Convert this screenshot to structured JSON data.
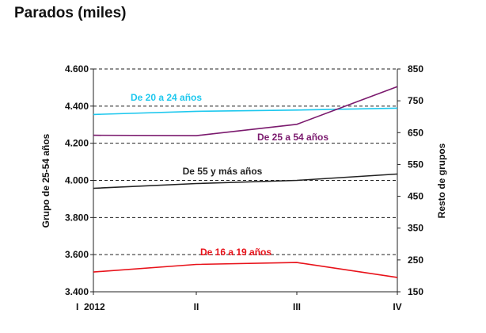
{
  "title": "Parados (miles)",
  "chart_data": {
    "type": "line",
    "title": "Parados (miles)",
    "categories": [
      "I  2012",
      "II",
      "III",
      "IV"
    ],
    "y_left": {
      "label": "Grupo de 25-54 años",
      "min": 3400,
      "max": 4600,
      "ticks": [
        3400,
        3600,
        3800,
        4000,
        4200,
        4400,
        4600
      ],
      "tick_labels": [
        "3.400",
        "3.600",
        "3.800",
        "4.000",
        "4.200",
        "4.400",
        "4.600"
      ]
    },
    "y_right": {
      "label": "Resto de grupos",
      "min": 150,
      "max": 850,
      "ticks": [
        150,
        250,
        350,
        450,
        550,
        650,
        750,
        850
      ],
      "tick_labels": [
        "150",
        "250",
        "350",
        "450",
        "550",
        "650",
        "750",
        "850"
      ]
    },
    "grid": "horizontal dashed",
    "series": [
      {
        "name": "De 20 a 24 años",
        "axis": "right",
        "color": "#1ec8ee",
        "values": [
          707,
          717,
          721,
          727
        ]
      },
      {
        "name": "De 25 a 54 años",
        "axis": "left",
        "color": "#7b1a6e",
        "values": [
          4243,
          4241,
          4302,
          4505
        ]
      },
      {
        "name": "De 55 y más años",
        "axis": "right",
        "color": "#222222",
        "values": [
          475,
          490,
          500,
          520
        ]
      },
      {
        "name": "De 16 a 19 años",
        "axis": "right",
        "color": "#e8121a",
        "values": [
          212,
          236,
          242,
          195
        ]
      }
    ]
  }
}
